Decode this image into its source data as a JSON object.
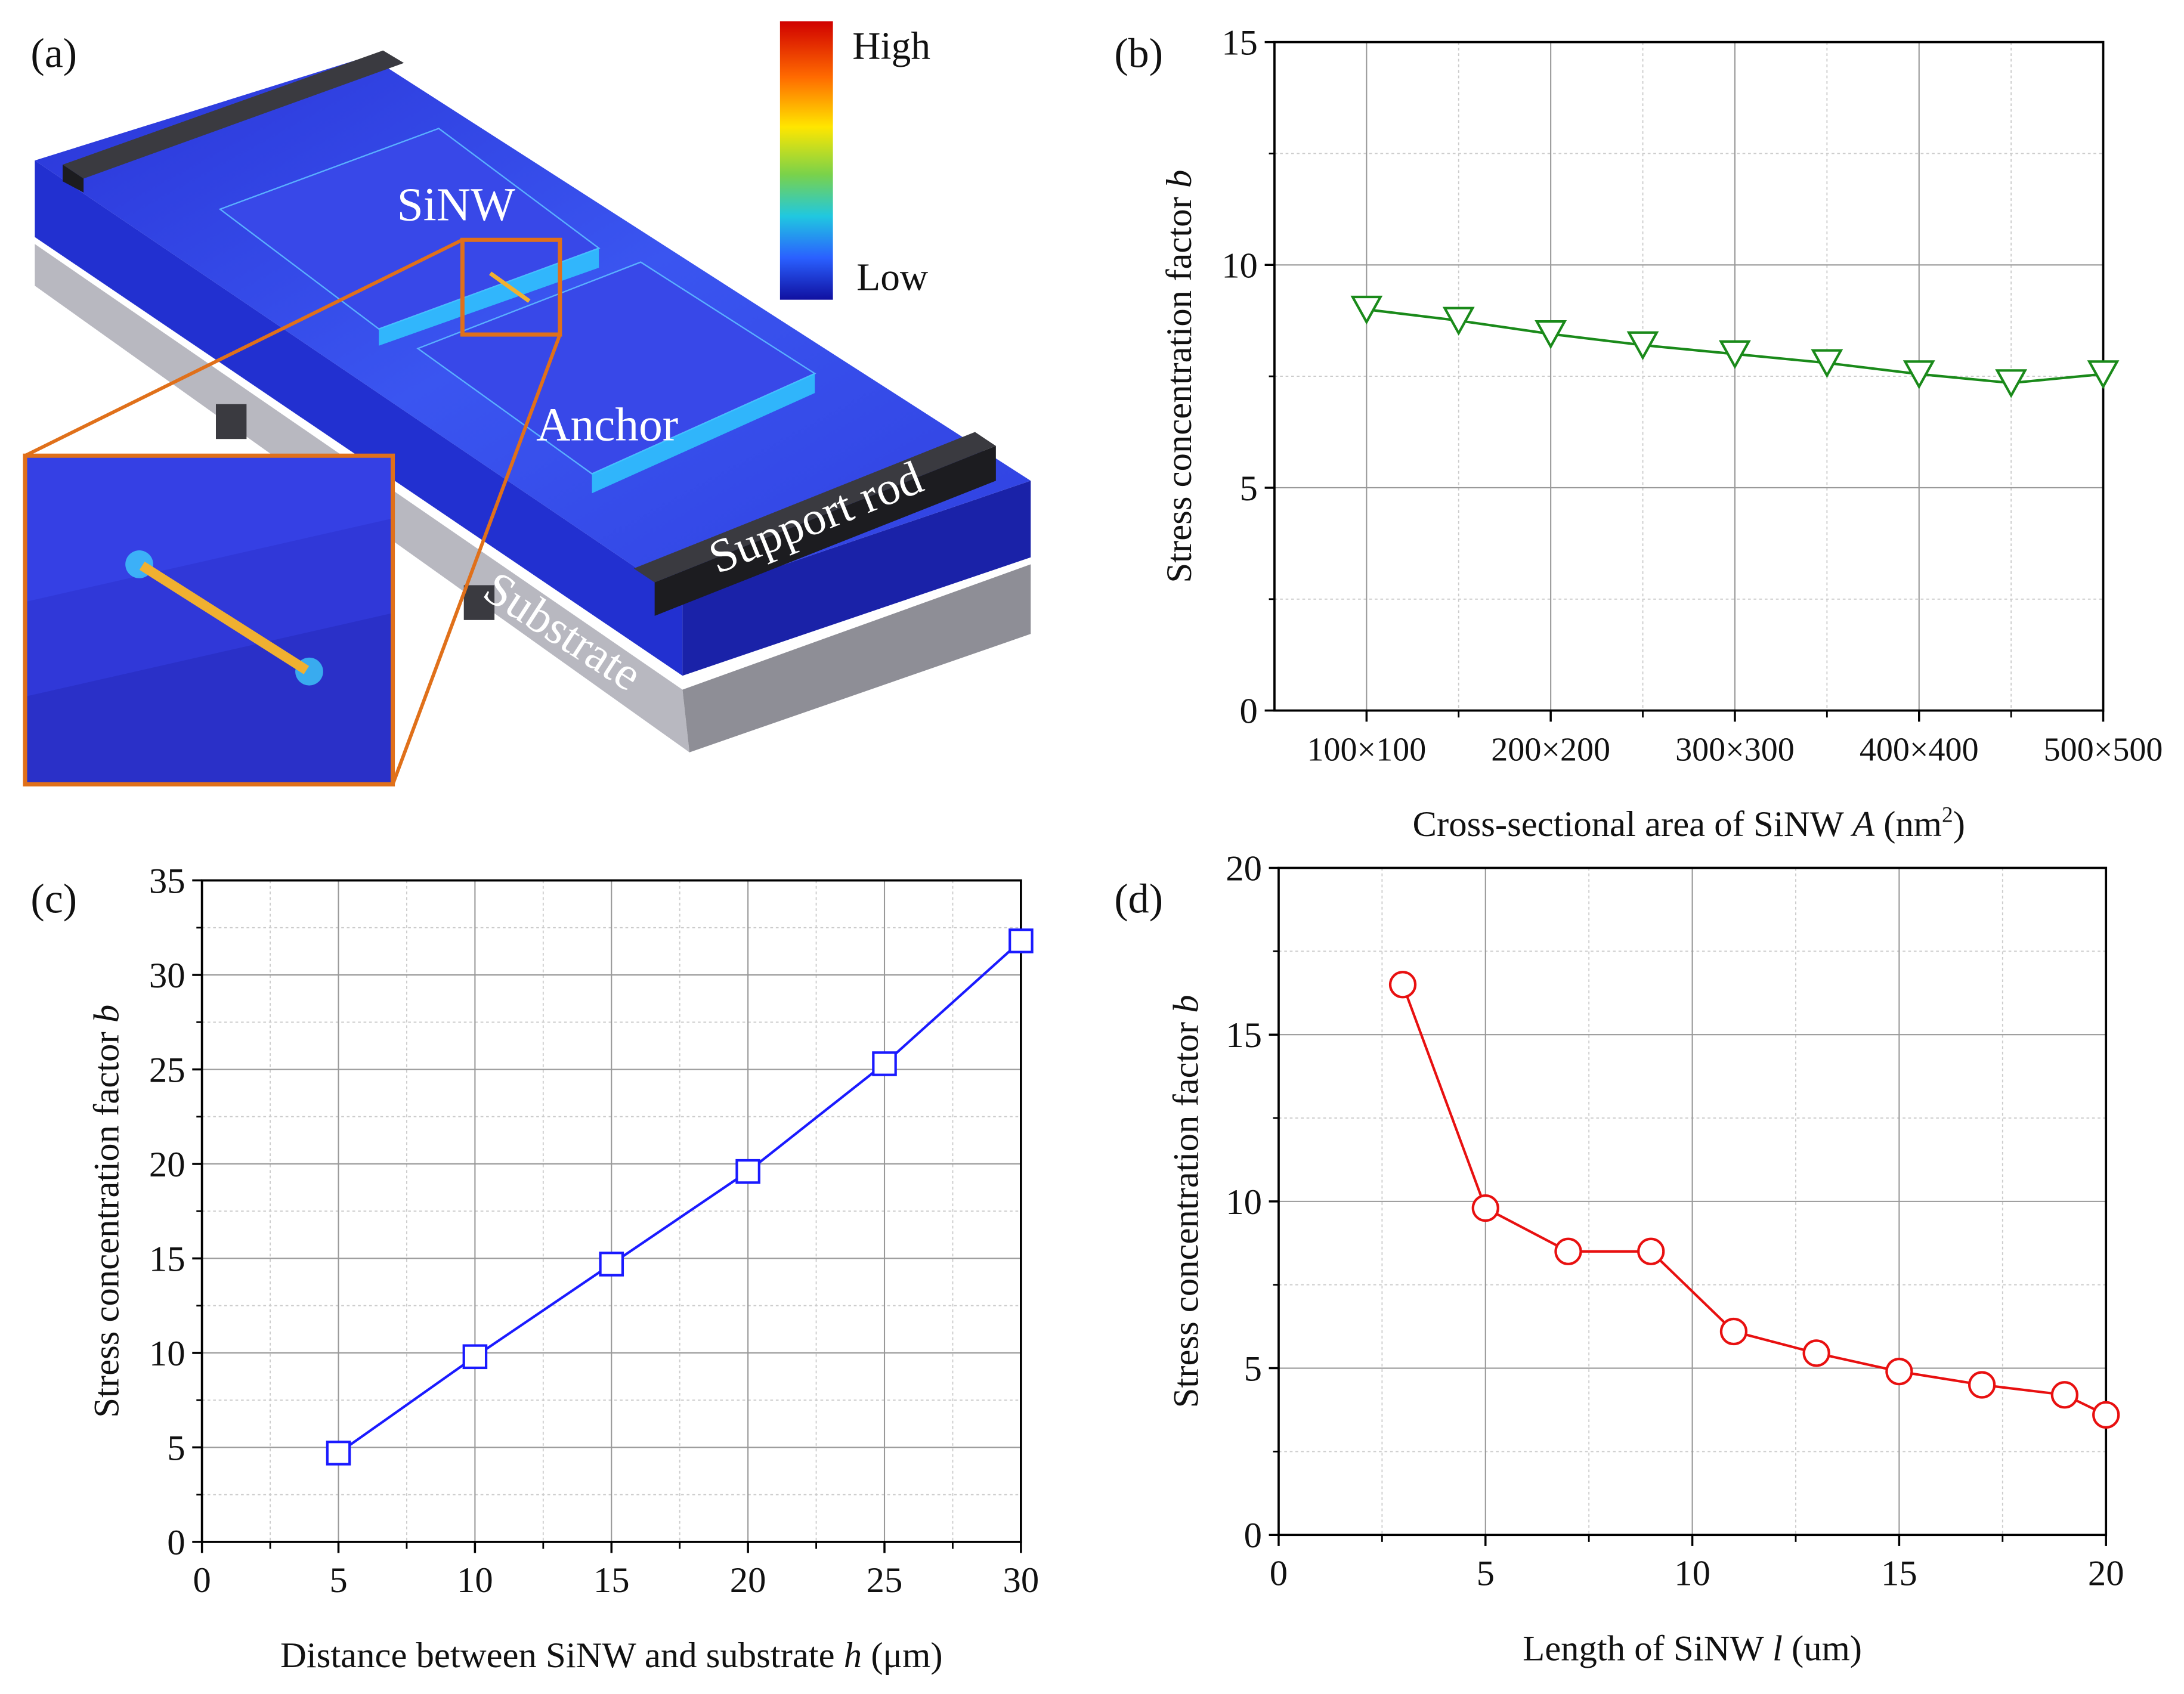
{
  "panel_a": {
    "label": "(a)",
    "colorbar": {
      "high": "High",
      "low": "Low",
      "colors": [
        "#d00000",
        "#ff6a00",
        "#ffe600",
        "#7ad24a",
        "#20c8e0",
        "#2a60ff",
        "#1010a0"
      ]
    },
    "labels": {
      "sinw": "SiNW",
      "anchor": "Anchor",
      "support_rod": "Support rod",
      "substrate": "Substrate"
    },
    "colors": {
      "device": "#2f3fe6",
      "substrate": "#a8a8b0",
      "rod": "#2a2a2e",
      "inset_border": "#e0701a",
      "nanowire": "#f0b030"
    }
  },
  "chart_data": [
    {
      "id": "b",
      "panel_label": "(b)",
      "type": "line",
      "xlabel": "Cross-sectional area of SiNW A (nm²)",
      "xlabel_parts": [
        "Cross-sectional area of SiNW ",
        "A",
        " (nm",
        "2",
        ")"
      ],
      "ylabel_parts": [
        "Stress concentration factor ",
        "b"
      ],
      "x": [
        100,
        150,
        200,
        250,
        300,
        350,
        400,
        450,
        500
      ],
      "xlim": [
        50,
        500
      ],
      "xticks": [
        100,
        200,
        300,
        400,
        500
      ],
      "xtick_labels": [
        "100×100",
        "200×200",
        "300×300",
        "400×400",
        "500×500"
      ],
      "ylim": [
        0,
        15
      ],
      "yticks": [
        0,
        5,
        10,
        15
      ],
      "ytick_labels": [
        "0",
        "5",
        "10",
        "15"
      ],
      "series": [
        {
          "name": "b",
          "values": [
            9.0,
            8.75,
            8.45,
            8.2,
            8.0,
            7.8,
            7.55,
            7.35,
            7.55
          ],
          "color": "#1a8a1a",
          "marker": "triangle-down"
        }
      ],
      "grid": true
    },
    {
      "id": "c",
      "panel_label": "(c)",
      "type": "line",
      "xlabel": "Distance between SiNW and substrate h (μm)",
      "xlabel_parts": [
        "Distance between SiNW and substrate ",
        "h",
        " (μm)",
        "",
        ""
      ],
      "ylabel_parts": [
        "Stress concentration factor ",
        "b"
      ],
      "x": [
        5,
        10,
        15,
        20,
        25,
        30
      ],
      "xlim": [
        0,
        30
      ],
      "xticks": [
        0,
        5,
        10,
        15,
        20,
        25,
        30
      ],
      "xtick_labels": [
        "0",
        "5",
        "10",
        "15",
        "20",
        "25",
        "30"
      ],
      "ylim": [
        0,
        35
      ],
      "yticks": [
        0,
        5,
        10,
        15,
        20,
        25,
        30,
        35
      ],
      "ytick_labels": [
        "0",
        "5",
        "10",
        "15",
        "20",
        "25",
        "30",
        "35"
      ],
      "series": [
        {
          "name": "b",
          "values": [
            4.7,
            9.8,
            14.7,
            19.6,
            25.3,
            31.8
          ],
          "color": "#1a1aff",
          "marker": "square"
        }
      ],
      "grid": true
    },
    {
      "id": "d",
      "panel_label": "(d)",
      "type": "line",
      "xlabel": "Length of SiNW l (um)",
      "xlabel_parts": [
        "Length of SiNW ",
        "l",
        " (um)",
        "",
        ""
      ],
      "ylabel_parts": [
        "Stress concentration factor ",
        "b"
      ],
      "x": [
        3,
        5,
        7,
        9,
        11,
        13,
        15,
        17,
        19,
        20
      ],
      "xlim": [
        0,
        20
      ],
      "xticks": [
        0,
        5,
        10,
        15,
        20
      ],
      "xtick_labels": [
        "0",
        "5",
        "10",
        "15",
        "20"
      ],
      "ylim": [
        0,
        20
      ],
      "yticks": [
        0,
        5,
        10,
        15,
        20
      ],
      "ytick_labels": [
        "0",
        "5",
        "10",
        "15",
        "20"
      ],
      "series": [
        {
          "name": "b",
          "values": [
            16.5,
            9.8,
            8.5,
            8.5,
            6.1,
            5.45,
            4.9,
            4.5,
            4.2,
            3.6
          ],
          "color": "#e81010",
          "marker": "circle"
        }
      ],
      "grid": true
    }
  ]
}
